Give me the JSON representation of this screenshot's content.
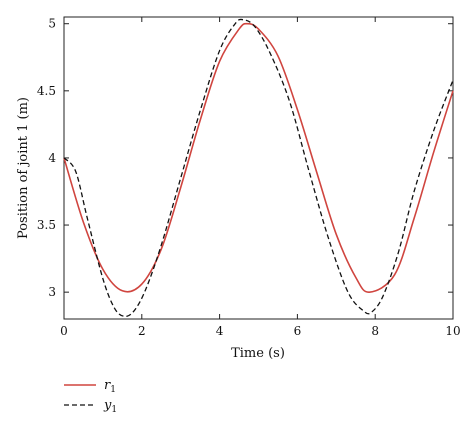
{
  "chart_data": {
    "type": "line",
    "xlabel": "Time (s)",
    "ylabel": "Position of joint 1 (m)",
    "xlim": [
      0,
      10
    ],
    "ylim": [
      2.8,
      5.05
    ],
    "xticks": [
      0,
      2,
      4,
      6,
      8,
      10
    ],
    "yticks": [
      3,
      3.5,
      4,
      4.5,
      5
    ],
    "xtick_labels": [
      "0",
      "2",
      "4",
      "6",
      "8",
      "10"
    ],
    "ytick_labels": [
      "3",
      "3.5",
      "4",
      "4.5",
      "5"
    ],
    "legend_placement": "below-left",
    "series": [
      {
        "name": "r",
        "subscript": "1",
        "color": "#d0453f",
        "dash": "solid",
        "x": [
          0,
          0.5,
          1.0,
          1.5,
          2.0,
          2.5,
          3.0,
          3.5,
          4.0,
          4.5,
          4.71,
          5.0,
          5.5,
          6.0,
          6.5,
          7.0,
          7.5,
          7.85,
          8.5,
          9.0,
          9.5,
          10.0
        ],
        "y": [
          4.0,
          3.52,
          3.17,
          3.01,
          3.06,
          3.32,
          3.78,
          4.28,
          4.72,
          4.96,
          5.0,
          4.96,
          4.76,
          4.36,
          3.89,
          3.43,
          3.11,
          3.0,
          3.13,
          3.55,
          4.04,
          4.5
        ]
      },
      {
        "name": "y",
        "subscript": "1",
        "color": "#111111",
        "dash": "dashed",
        "x": [
          0,
          0.3,
          0.6,
          1.0,
          1.3,
          1.55,
          1.8,
          2.1,
          2.5,
          3.0,
          3.5,
          4.0,
          4.4,
          4.6,
          4.9,
          5.3,
          5.8,
          6.3,
          6.8,
          7.3,
          7.7,
          7.9,
          8.2,
          8.6,
          9.0,
          9.5,
          10.0
        ],
        "y": [
          4.0,
          3.9,
          3.55,
          3.1,
          2.88,
          2.82,
          2.86,
          3.02,
          3.35,
          3.85,
          4.35,
          4.8,
          5.0,
          5.03,
          4.98,
          4.78,
          4.42,
          3.9,
          3.4,
          3.0,
          2.86,
          2.85,
          2.97,
          3.3,
          3.75,
          4.2,
          4.58
        ]
      }
    ]
  }
}
